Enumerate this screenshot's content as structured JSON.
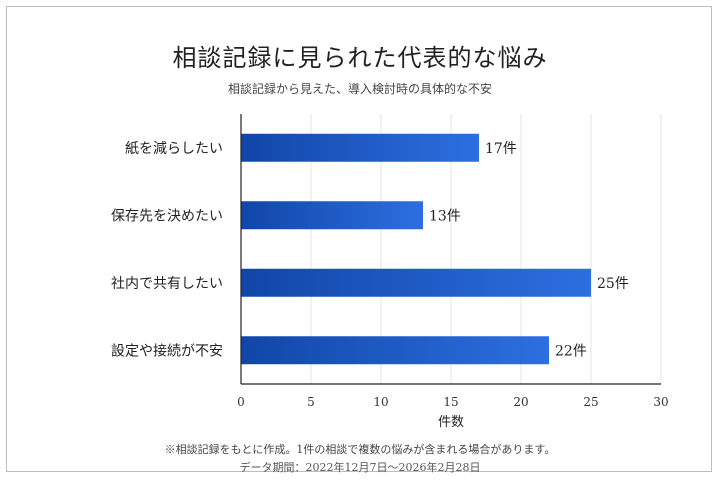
{
  "chart_data": {
    "type": "bar",
    "orientation": "horizontal",
    "title": "相談記録に見られた代表的な悩み",
    "subtitle": "相談記録から見えた、導入検討時の具体的な不安",
    "categories": [
      "紙を減らしたい",
      "保存先を決めたい",
      "社内で共有したい",
      "設定や接続が不安"
    ],
    "values": [
      17,
      13,
      25,
      22
    ],
    "value_suffix": "件",
    "xlabel": "件数",
    "xlim": [
      0,
      30
    ],
    "xticks": [
      0,
      5,
      10,
      15,
      20,
      25,
      30
    ],
    "grid": true,
    "bar_color": "#1a56c4"
  },
  "footnote": "※相談記録をもとに作成。1件の相談で複数の悩みが含まれる場合があります。",
  "period": "データ期間：2022年12月7日～2026年2月28日"
}
